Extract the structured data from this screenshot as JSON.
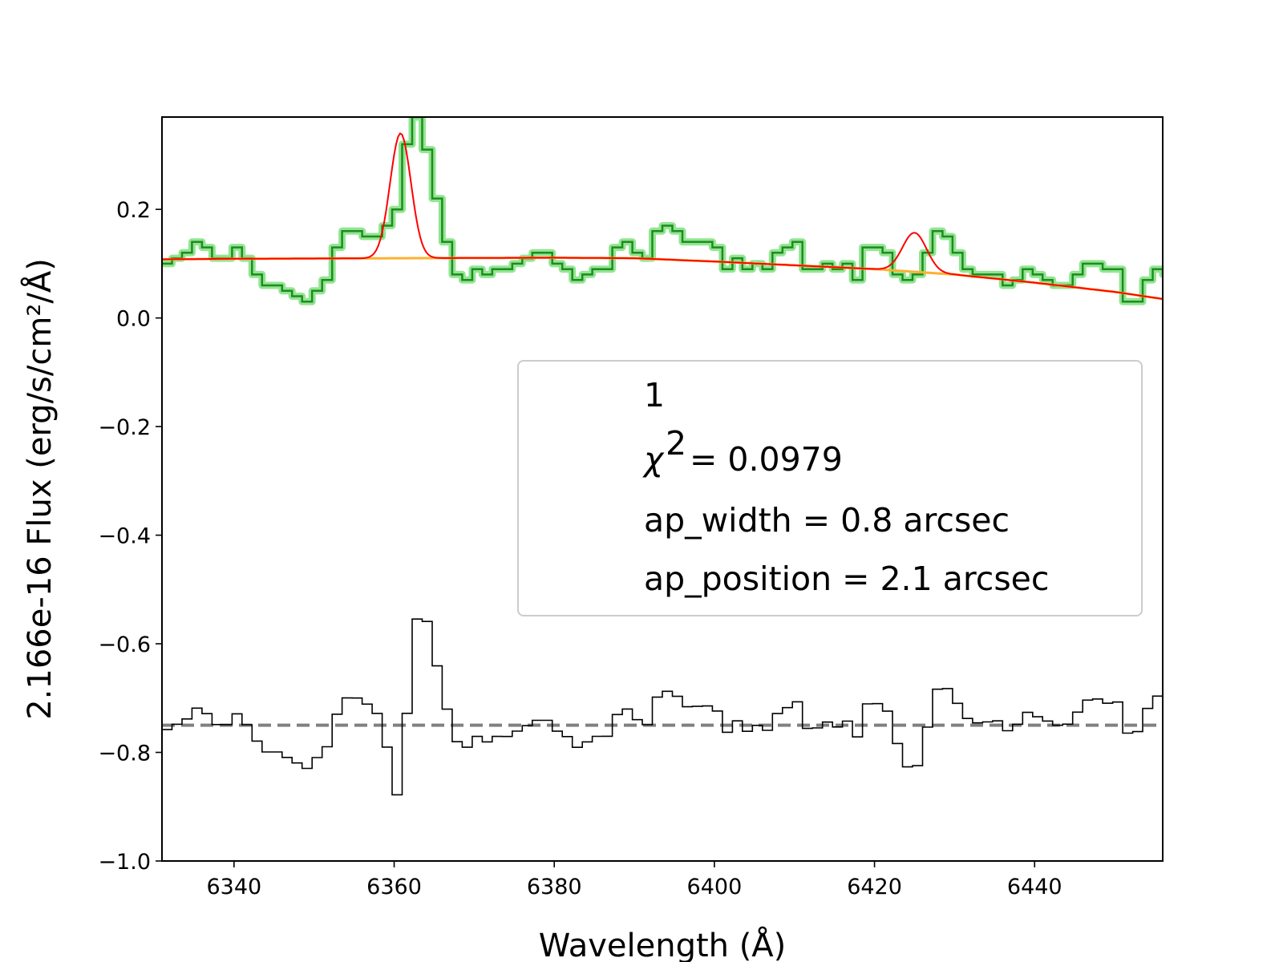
{
  "chart_data": {
    "type": "line",
    "xlabel": "Wavelength (Å)",
    "ylabel": "2.166e-16  Flux (erg/s/cm²/Å)",
    "xlim": [
      6331,
      6456
    ],
    "ylim": [
      -1.0,
      0.37
    ],
    "xticks": [
      "6340",
      "6360",
      "6380",
      "6400",
      "6420",
      "6440"
    ],
    "yticks": [
      "−1.0",
      "−0.8",
      "−0.6",
      "−0.4",
      "−0.2",
      "0.0",
      "0.2"
    ],
    "grid": false,
    "legend": {
      "placement": "center-right",
      "label": "1",
      "chi2_label": "χ",
      "chi2_value": "= 0.0979",
      "ap_width": "ap_width = 0.8 arcsec",
      "ap_position": "ap_position = 2.1 arcsec"
    },
    "colors": {
      "data_line": "#1e8c1e",
      "data_glow": "#7fe07f",
      "model": "#ff0000",
      "continuum": "#ffb030",
      "residual": "#000000",
      "zero_line": "#808080"
    },
    "flux_steps": {
      "x_start": 6331,
      "bin_width": 1.25,
      "values": [
        0.1,
        0.11,
        0.12,
        0.14,
        0.13,
        0.11,
        0.11,
        0.13,
        0.11,
        0.08,
        0.06,
        0.06,
        0.05,
        0.04,
        0.03,
        0.05,
        0.07,
        0.13,
        0.16,
        0.16,
        0.15,
        0.15,
        0.17,
        0.2,
        0.32,
        0.37,
        0.31,
        0.22,
        0.14,
        0.08,
        0.07,
        0.09,
        0.08,
        0.09,
        0.09,
        0.1,
        0.11,
        0.12,
        0.12,
        0.1,
        0.09,
        0.07,
        0.08,
        0.09,
        0.09,
        0.13,
        0.14,
        0.12,
        0.11,
        0.16,
        0.17,
        0.16,
        0.14,
        0.14,
        0.14,
        0.13,
        0.09,
        0.11,
        0.09,
        0.1,
        0.09,
        0.12,
        0.13,
        0.14,
        0.09,
        0.09,
        0.1,
        0.09,
        0.1,
        0.07,
        0.13,
        0.13,
        0.12,
        0.08,
        0.07,
        0.08,
        0.12,
        0.16,
        0.15,
        0.12,
        0.09,
        0.08,
        0.08,
        0.08,
        0.06,
        0.07,
        0.09,
        0.08,
        0.07,
        0.06,
        0.06,
        0.08,
        0.1,
        0.1,
        0.09,
        0.09,
        0.03,
        0.03,
        0.07,
        0.09,
        0.08,
        0.05
      ]
    },
    "model_line": {
      "continuum": [
        [
          6331,
          0.108
        ],
        [
          6340,
          0.109
        ],
        [
          6360,
          0.11
        ],
        [
          6380,
          0.111
        ],
        [
          6390,
          0.11
        ],
        [
          6400,
          0.104
        ],
        [
          6410,
          0.097
        ],
        [
          6420,
          0.09
        ],
        [
          6430,
          0.08
        ],
        [
          6440,
          0.065
        ],
        [
          6450,
          0.048
        ],
        [
          6456,
          0.035
        ]
      ],
      "lines": [
        {
          "center": 6360.8,
          "amplitude": 0.23,
          "sigma": 1.3
        },
        {
          "center": 6425.0,
          "amplitude": 0.072,
          "sigma": 1.5
        }
      ]
    },
    "residual_offset": -0.75
  }
}
